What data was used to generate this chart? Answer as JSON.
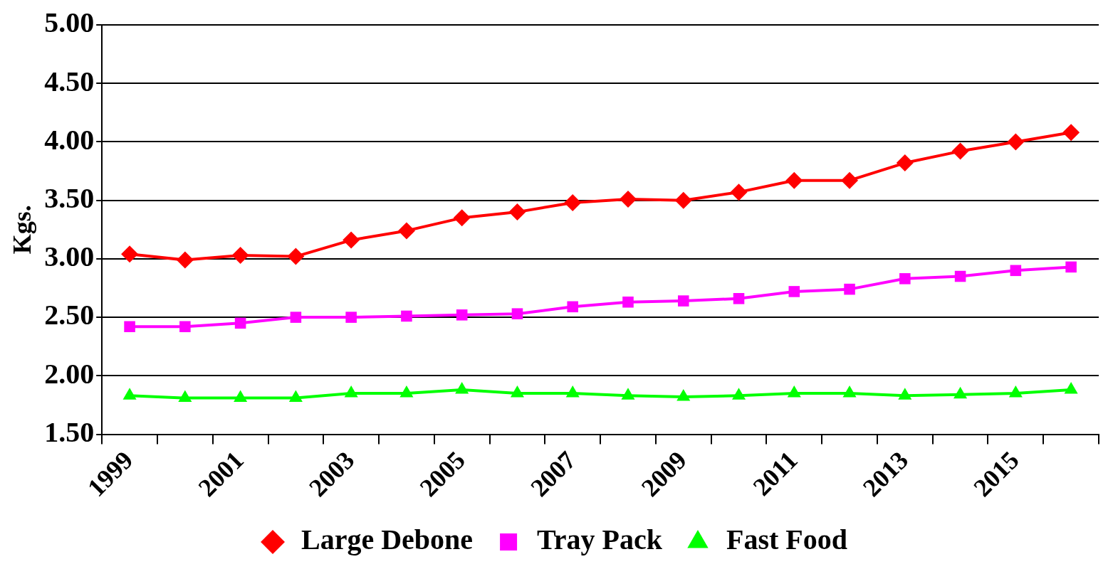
{
  "chart_data": {
    "type": "line",
    "ylabel": "Kgs.",
    "categories": [
      "1999",
      null,
      "2001",
      null,
      "2003",
      null,
      "2005",
      null,
      "2007",
      null,
      "2009",
      null,
      "2011",
      null,
      "2013",
      null,
      "2015",
      null
    ],
    "series": [
      {
        "name": "Large Debone",
        "color": "#ff0000",
        "marker": "diamond",
        "values": [
          3.04,
          2.99,
          3.03,
          3.02,
          3.16,
          3.24,
          3.35,
          3.4,
          3.48,
          3.51,
          3.5,
          3.57,
          3.67,
          3.67,
          3.82,
          3.92,
          4.0,
          4.08
        ]
      },
      {
        "name": "Tray Pack",
        "color": "#ff00ff",
        "marker": "square",
        "values": [
          2.42,
          2.42,
          2.45,
          2.5,
          2.5,
          2.51,
          2.52,
          2.53,
          2.59,
          2.63,
          2.64,
          2.66,
          2.72,
          2.74,
          2.83,
          2.85,
          2.9,
          2.93
        ]
      },
      {
        "name": "Fast Food",
        "color": "#00ff00",
        "marker": "triangle",
        "values": [
          1.83,
          1.81,
          1.81,
          1.81,
          1.85,
          1.85,
          1.88,
          1.85,
          1.85,
          1.83,
          1.82,
          1.83,
          1.85,
          1.85,
          1.83,
          1.84,
          1.85,
          1.88
        ]
      }
    ],
    "ylim": [
      1.5,
      5
    ],
    "yticks": [
      {
        "value": 1.5,
        "label": "1.50"
      },
      {
        "value": 2,
        "label": "2.00"
      },
      {
        "value": 2.5,
        "label": "2.50"
      },
      {
        "value": 3,
        "label": "3.00"
      },
      {
        "value": 3.5,
        "label": "3.50"
      },
      {
        "value": 4,
        "label": "4.00"
      },
      {
        "value": 4.5,
        "label": "4.50"
      },
      {
        "value": 5,
        "label": "5.00"
      }
    ],
    "grid": "y",
    "legend": "bottom",
    "line_style": "solid"
  }
}
